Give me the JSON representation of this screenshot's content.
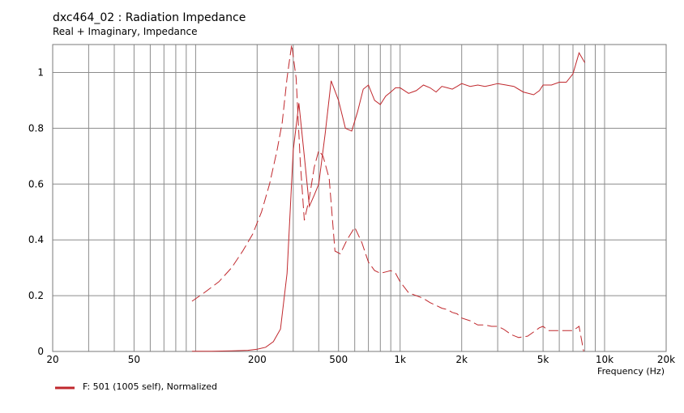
{
  "chart_data": {
    "type": "line",
    "title": "dxc464_02 : Radiation Impedance",
    "subtitle": "Real + Imaginary, Impedance",
    "xlabel": "Frequency  (Hz)",
    "ylabel": "",
    "x_scale": "log",
    "xlim": [
      20,
      20000
    ],
    "ylim": [
      0,
      1.1
    ],
    "x_tick_values": [
      20,
      50,
      200,
      500,
      1000,
      2000,
      5000,
      10000,
      20000
    ],
    "x_tick_labels": [
      "20",
      "50",
      "200",
      "500",
      "1k",
      "2k",
      "5k",
      "10k",
      "20k"
    ],
    "x_gridlines": [
      20,
      30,
      40,
      50,
      60,
      70,
      80,
      90,
      100,
      200,
      300,
      400,
      500,
      600,
      700,
      800,
      900,
      1000,
      2000,
      3000,
      4000,
      5000,
      6000,
      7000,
      8000,
      9000,
      10000,
      20000
    ],
    "y_ticks": [
      0,
      0.2,
      0.4,
      0.6,
      0.8,
      1
    ],
    "y_tick_labels": [
      "0",
      "0.2",
      "0.4",
      "0.6",
      "0.8",
      "1"
    ],
    "grid": true,
    "legend_position": "bottom-left",
    "line_color": "#c0282d",
    "series": [
      {
        "name": "F: 501 (1005 self), Normalized",
        "style": "solid",
        "x": [
          96,
          120,
          150,
          180,
          200,
          220,
          240,
          260,
          280,
          300,
          320,
          340,
          360,
          380,
          400,
          430,
          460,
          500,
          540,
          580,
          620,
          660,
          700,
          750,
          800,
          850,
          900,
          950,
          1000,
          1100,
          1200,
          1300,
          1400,
          1500,
          1600,
          1700,
          1800,
          1900,
          2000,
          2200,
          2400,
          2600,
          2800,
          3000,
          3300,
          3600,
          4000,
          4500,
          4800,
          5000,
          5500,
          6000,
          6500,
          7000,
          7500,
          8000
        ],
        "values": [
          0.001,
          0.001,
          0.002,
          0.004,
          0.008,
          0.015,
          0.035,
          0.08,
          0.28,
          0.72,
          0.89,
          0.7,
          0.52,
          0.56,
          0.6,
          0.78,
          0.97,
          0.9,
          0.8,
          0.79,
          0.86,
          0.94,
          0.955,
          0.9,
          0.885,
          0.915,
          0.93,
          0.945,
          0.945,
          0.925,
          0.935,
          0.955,
          0.945,
          0.93,
          0.95,
          0.945,
          0.94,
          0.95,
          0.96,
          0.95,
          0.955,
          0.95,
          0.955,
          0.96,
          0.955,
          0.95,
          0.93,
          0.92,
          0.935,
          0.955,
          0.955,
          0.965,
          0.965,
          0.995,
          1.07,
          1.035
        ]
      },
      {
        "name": "",
        "style": "dashed",
        "x": [
          96,
          110,
          130,
          150,
          170,
          190,
          210,
          230,
          250,
          265,
          280,
          295,
          310,
          325,
          340,
          360,
          380,
          400,
          420,
          450,
          480,
          510,
          550,
          600,
          650,
          700,
          750,
          800,
          850,
          900,
          950,
          1000,
          1100,
          1200,
          1300,
          1400,
          1500,
          1600,
          1700,
          1800,
          1900,
          2000,
          2200,
          2400,
          2600,
          2800,
          3000,
          3200,
          3500,
          3800,
          4200,
          4500,
          4800,
          5000,
          5300,
          6000,
          6500,
          7000,
          7500,
          7900
        ],
        "values": [
          0.18,
          0.21,
          0.25,
          0.3,
          0.36,
          0.42,
          0.5,
          0.6,
          0.72,
          0.82,
          0.98,
          1.1,
          0.98,
          0.68,
          0.47,
          0.55,
          0.66,
          0.72,
          0.7,
          0.62,
          0.36,
          0.35,
          0.4,
          0.445,
          0.39,
          0.32,
          0.29,
          0.28,
          0.285,
          0.29,
          0.28,
          0.25,
          0.21,
          0.2,
          0.19,
          0.175,
          0.165,
          0.155,
          0.15,
          0.14,
          0.135,
          0.12,
          0.11,
          0.095,
          0.095,
          0.09,
          0.09,
          0.08,
          0.06,
          0.05,
          0.055,
          0.07,
          0.085,
          0.09,
          0.075,
          0.075,
          0.075,
          0.075,
          0.09,
          0.0
        ]
      }
    ]
  }
}
